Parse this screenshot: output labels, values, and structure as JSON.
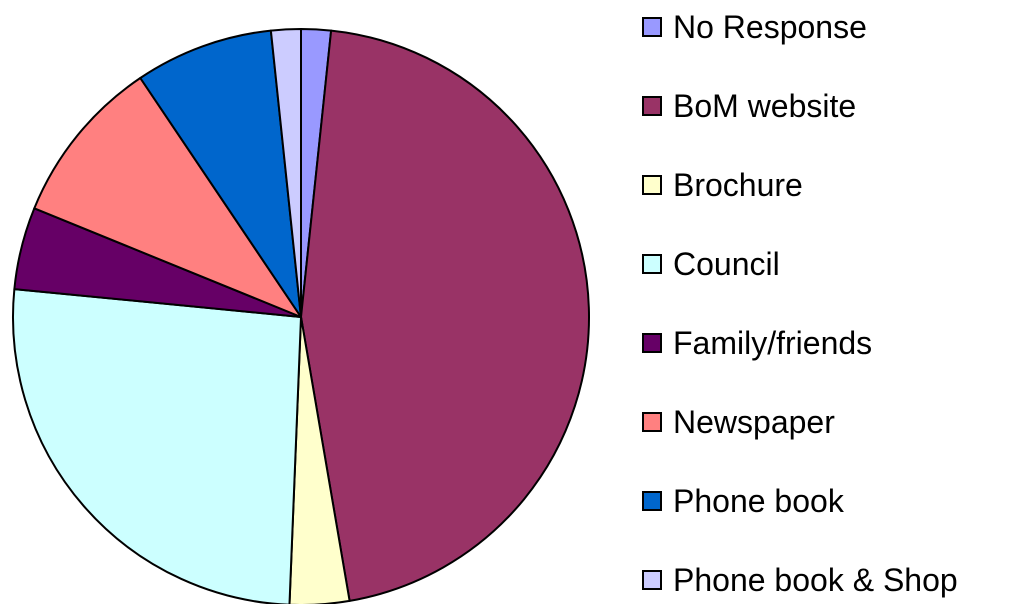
{
  "chart_data": {
    "type": "pie",
    "title": "",
    "categories": [
      "No Response",
      "BoM website",
      "Brochure",
      "Council",
      "Family/friends",
      "Newspaper",
      "Phone book",
      "Phone book & Shop"
    ],
    "values": [
      1.7,
      46.5,
      3.4,
      26.4,
      4.7,
      9.6,
      7.9,
      1.7
    ],
    "colors": [
      "#9999ff",
      "#993366",
      "#ffffcc",
      "#ccffff",
      "#660066",
      "#ff8080",
      "#0066cc",
      "#ccccff"
    ],
    "start_angle_deg": 0,
    "direction": "clockwise",
    "legend": {
      "position": "right"
    }
  }
}
